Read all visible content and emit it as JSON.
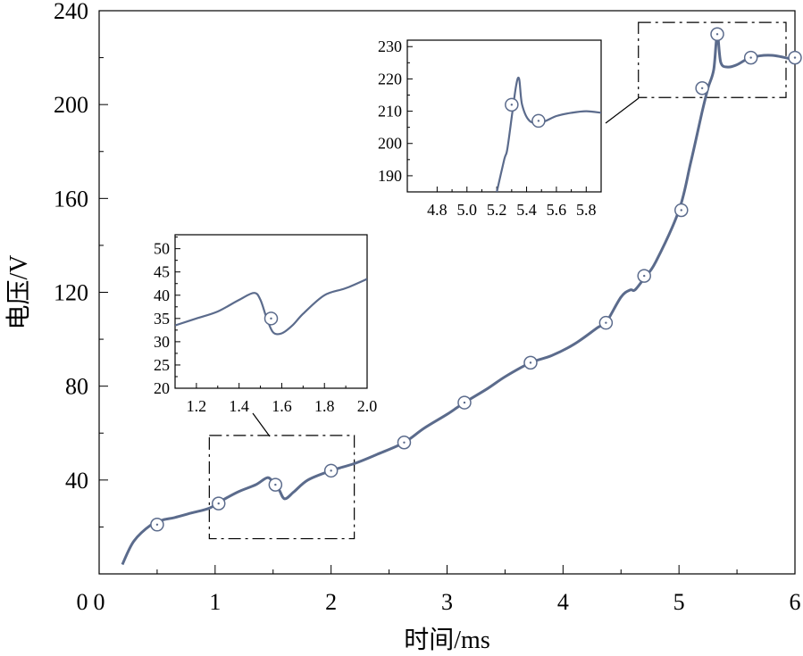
{
  "chart_data": [
    {
      "type": "line",
      "title": "",
      "xlabel": "时间/ms",
      "ylabel": "电压/V",
      "xlim": [
        0,
        6
      ],
      "ylim": [
        0,
        240
      ],
      "x_ticks": [
        "0",
        "1",
        "2",
        "3",
        "4",
        "5",
        "6"
      ],
      "y_ticks": [
        "40",
        "80",
        "120",
        "160",
        "200",
        "240"
      ],
      "series": [
        {
          "color": "#5b6b8c",
          "x": [
            0.2,
            0.3,
            0.45,
            0.55,
            0.65,
            0.8,
            0.95,
            1.05,
            1.2,
            1.35,
            1.45,
            1.5,
            1.55,
            1.6,
            1.68,
            1.8,
            2.0,
            2.2,
            2.4,
            2.63,
            2.8,
            3.0,
            3.15,
            3.35,
            3.5,
            3.72,
            3.9,
            4.1,
            4.3,
            4.37,
            4.5,
            4.58,
            4.62,
            4.7,
            4.8,
            5.0,
            5.1,
            5.2,
            5.25,
            5.3,
            5.33,
            5.36,
            5.42,
            5.5,
            5.62,
            5.8,
            6.0
          ],
          "y": [
            4,
            14,
            21,
            23,
            24,
            26,
            28,
            31,
            35,
            38,
            41,
            39,
            36,
            32,
            35,
            40,
            44,
            47,
            51,
            56,
            62,
            68,
            73,
            79,
            84,
            90,
            93,
            98,
            105,
            107,
            118,
            121,
            121,
            126,
            133,
            155,
            175,
            197,
            207,
            215,
            230,
            218,
            216,
            217,
            220,
            221,
            219
          ],
          "markers": {
            "x": [
              0.5,
              1.03,
              1.52,
              2.0,
              2.63,
              3.15,
              3.72,
              4.37,
              4.7,
              5.02,
              5.2,
              5.33,
              5.62,
              6.0
            ],
            "y": [
              21,
              30,
              38,
              44,
              56,
              73,
              90,
              107,
              127,
              155,
              207,
              230,
              220,
              220
            ]
          }
        }
      ],
      "annotations": [
        "dash-dot zoom box 0.95–2.2 ms, 15–59 V",
        "dash-dot zoom box 4.65–6.0 ms, 203–235 V"
      ]
    },
    {
      "type": "line",
      "title": "",
      "xlim": [
        1.1,
        2.0
      ],
      "ylim": [
        20,
        53
      ],
      "x_ticks": [
        "1.2",
        "1.4",
        "1.6",
        "1.8",
        "2.0"
      ],
      "y_ticks": [
        "20",
        "25",
        "30",
        "35",
        "40",
        "45",
        "50"
      ],
      "series": [
        {
          "color": "#5b6b8c",
          "x": [
            1.1,
            1.2,
            1.3,
            1.4,
            1.47,
            1.5,
            1.53,
            1.56,
            1.6,
            1.65,
            1.7,
            1.8,
            1.9,
            2.0
          ],
          "y": [
            33.5,
            35.0,
            36.5,
            39.0,
            40.5,
            39.0,
            35.0,
            32.0,
            31.8,
            33.5,
            36.0,
            40.0,
            41.5,
            43.5
          ],
          "markers": {
            "x": [
              1.55
            ],
            "y": [
              35
            ]
          }
        }
      ]
    },
    {
      "type": "line",
      "title": "",
      "xlim": [
        4.6,
        5.9
      ],
      "ylim": [
        185,
        232
      ],
      "x_ticks": [
        "4.8",
        "5.0",
        "5.2",
        "5.4",
        "5.6",
        "5.8"
      ],
      "y_ticks": [
        "190",
        "200",
        "210",
        "220",
        "230"
      ],
      "series": [
        {
          "color": "#5b6b8c",
          "x": [
            5.2,
            5.25,
            5.27,
            5.3,
            5.33,
            5.35,
            5.37,
            5.42,
            5.5,
            5.6,
            5.7,
            5.8,
            5.9
          ],
          "y": [
            185,
            195,
            198,
            208,
            218,
            220,
            212,
            207,
            206.5,
            208.5,
            209.5,
            210,
            209.5
          ],
          "markers": {
            "x": [
              5.3,
              5.48
            ],
            "y": [
              212,
              207
            ]
          }
        }
      ]
    }
  ]
}
